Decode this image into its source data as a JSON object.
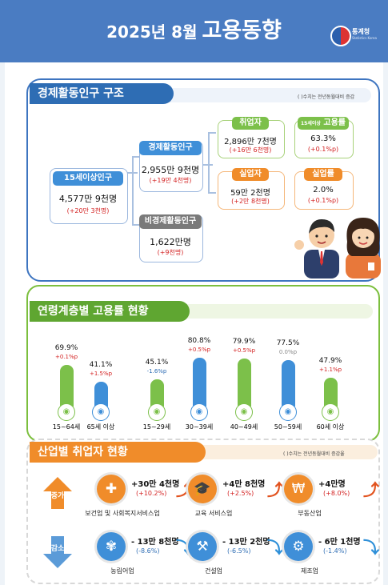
{
  "header": {
    "year_month": "2025년  8월",
    "title": "고용동향",
    "agency": "통계청",
    "agency_en": "Statistics Korea"
  },
  "structure": {
    "title": "경제활동인구 구조",
    "note": "(  )수치는 전년동월대비 증감",
    "pop15": {
      "label": "15세이상인구",
      "value": "4,577만 9천명",
      "change": "(+20만 3천명)"
    },
    "active": {
      "label": "경제활동인구",
      "value": "2,955만 9천명",
      "change": "(+19만 4천명)"
    },
    "inactive": {
      "label": "비경제활동인구",
      "value": "1,622만명",
      "change": "(+9천명)"
    },
    "employed": {
      "label": "취업자",
      "value": "2,896만 7천명",
      "change": "(+16만 6천명)"
    },
    "unemployed": {
      "label": "실업자",
      "value": "59만 2천명",
      "change": "(+2만 8천명)"
    },
    "emp_rate": {
      "label_small": "15세이상",
      "label": "고용률",
      "value": "63.3%",
      "change": "(+0.1%p)"
    },
    "unemp_rate": {
      "label": "실업률",
      "value": "2.0%",
      "change": "(+0.1%p)"
    }
  },
  "age_section": {
    "title": "연령계층별 고용률 현황"
  },
  "chart_data": {
    "type": "bar",
    "categories": [
      "15~64세",
      "65세 이상",
      "15~29세",
      "30~39세",
      "40~49세",
      "50~59세",
      "60세 이상"
    ],
    "values": [
      69.9,
      41.1,
      45.1,
      80.8,
      79.9,
      77.5,
      47.9
    ],
    "labels": [
      "69.9%",
      "41.1%",
      "45.1%",
      "80.8%",
      "79.9%",
      "77.5%",
      "47.9%"
    ],
    "changes": [
      "+0.1%p",
      "+1.5%p",
      "-1.6%p",
      "+0.5%p",
      "+0.5%p",
      "0.0%p",
      "+1.1%p"
    ],
    "change_colors": [
      "#d32222",
      "#d32222",
      "#2e6db4",
      "#d32222",
      "#d32222",
      "#888888",
      "#d32222"
    ],
    "bar_colors": [
      "#7cc04a",
      "#3f8fd8",
      "#7cc04a",
      "#3f8fd8",
      "#7cc04a",
      "#3f8fd8",
      "#7cc04a"
    ]
  },
  "industry": {
    "title": "산업별 취업자 현황",
    "note": "(  )수치는 전년동월대비 증감율",
    "increase_label": "증가",
    "decrease_label": "감소",
    "increase": [
      {
        "name": "보건업 및 사회복지서비스업",
        "value": "+30만 4천명",
        "change": "(+10.2%)",
        "icon": "medical-kit-icon",
        "color": "#f08c2a"
      },
      {
        "name": "교육 서비스업",
        "value": "+4만 8천명",
        "change": "(+2.5%)",
        "icon": "graduation-cap-icon",
        "color": "#f08c2a"
      },
      {
        "name": "부동산업",
        "value": "+4만명",
        "change": "(+8.0%)",
        "icon": "house-won-icon",
        "color": "#f08c2a"
      }
    ],
    "decrease": [
      {
        "name": "농림어업",
        "value": "- 13만 8천명",
        "change": "(-8.6%)",
        "icon": "wheat-icon",
        "color": "#3f8fd8"
      },
      {
        "name": "건설업",
        "value": "- 13만 2천명",
        "change": "(-6.5%)",
        "icon": "excavator-icon",
        "color": "#3f8fd8"
      },
      {
        "name": "제조업",
        "value": "- 6만 1천명",
        "change": "(-1.4%)",
        "icon": "gear-icon",
        "color": "#3f8fd8"
      }
    ]
  }
}
